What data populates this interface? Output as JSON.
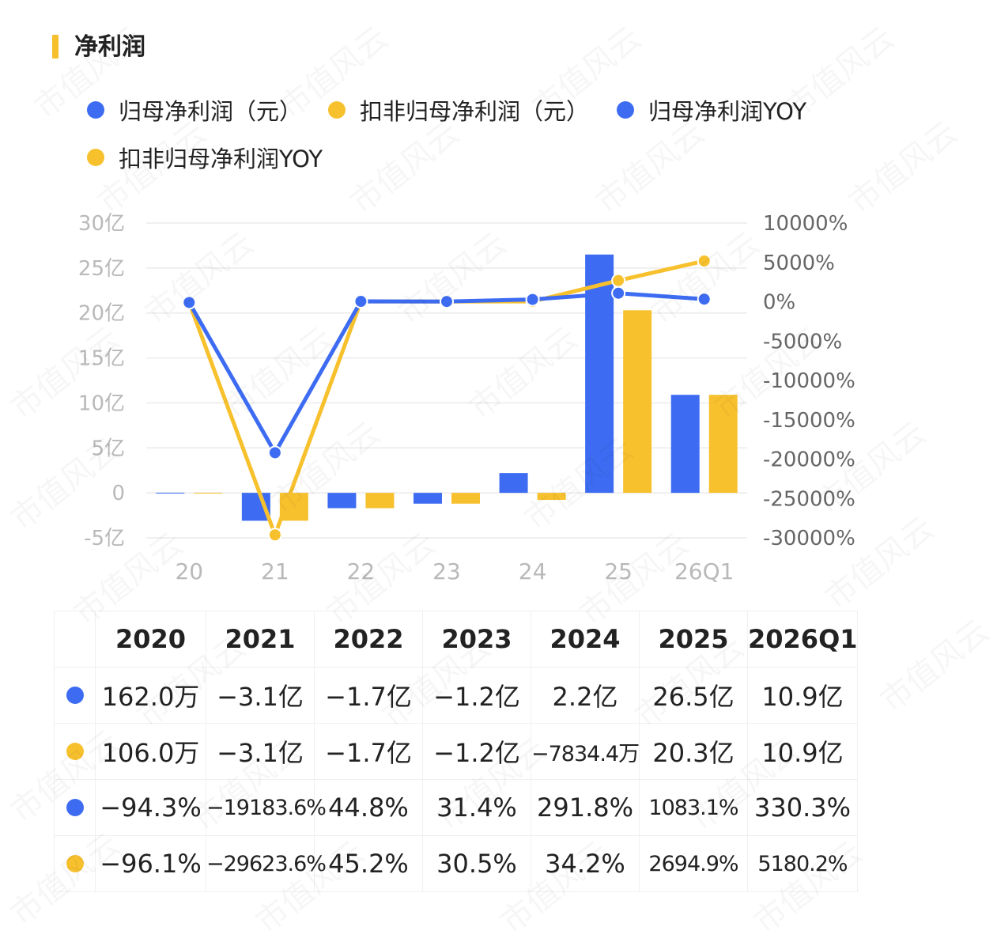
{
  "title": "净利润",
  "colors": {
    "blue": "#3d6cf2",
    "yellow": "#f7c12e",
    "accent_bar": "#f5c02b"
  },
  "legend": [
    {
      "label": "归母净利润（元）",
      "color": "#3d6cf2"
    },
    {
      "label": "扣非归母净利润（元）",
      "color": "#f7c12e"
    },
    {
      "label": "归母净利润YOY",
      "color": "#3d6cf2"
    },
    {
      "label": "扣非归母净利润YOY",
      "color": "#f7c12e"
    }
  ],
  "watermark": "市值风云",
  "chart_data": {
    "type": "bar",
    "categories": [
      "20",
      "21",
      "22",
      "23",
      "24",
      "25",
      "26Q1"
    ],
    "y_left": {
      "ticks": [
        "30亿",
        "25亿",
        "20亿",
        "15亿",
        "10亿",
        "5亿",
        "0",
        "-5亿"
      ],
      "min": -5,
      "max": 30,
      "unit": "亿"
    },
    "y_right": {
      "ticks": [
        "10000%",
        "5000%",
        "0%",
        "-5000%",
        "-10000%",
        "-15000%",
        "-20000%",
        "-25000%",
        "-30000%"
      ],
      "min": -30000,
      "max": 10000
    },
    "series": [
      {
        "name": "归母净利润（元）",
        "kind": "bar",
        "axis": "left",
        "color": "#3d6cf2",
        "values": [
          0.0162,
          -3.1,
          -1.7,
          -1.2,
          2.2,
          26.5,
          10.9
        ]
      },
      {
        "name": "扣非归母净利润（元）",
        "kind": "bar",
        "axis": "left",
        "color": "#f7c12e",
        "values": [
          0.0106,
          -3.1,
          -1.7,
          -1.2,
          -0.78344,
          20.3,
          10.9
        ]
      },
      {
        "name": "归母净利润YOY",
        "kind": "line",
        "axis": "right",
        "color": "#3d6cf2",
        "values": [
          -94.3,
          -19183.6,
          44.8,
          31.4,
          291.8,
          1083.1,
          330.3
        ]
      },
      {
        "name": "扣非归母净利润YOY",
        "kind": "line",
        "axis": "right",
        "color": "#f7c12e",
        "values": [
          -96.1,
          -29623.6,
          45.2,
          30.5,
          34.2,
          2694.9,
          5180.2
        ]
      }
    ]
  },
  "table": {
    "headers": [
      "2020",
      "2021",
      "2022",
      "2023",
      "2024",
      "2025",
      "2026Q1"
    ],
    "rows": [
      {
        "color": "#3d6cf2",
        "cells": [
          "162.0万",
          "−3.1亿",
          "−1.7亿",
          "−1.2亿",
          "2.2亿",
          "26.5亿",
          "10.9亿"
        ]
      },
      {
        "color": "#f7c12e",
        "cells": [
          "106.0万",
          "−3.1亿",
          "−1.7亿",
          "−1.2亿",
          "−7834.4万",
          "20.3亿",
          "10.9亿"
        ]
      },
      {
        "color": "#3d6cf2",
        "cells": [
          "−94.3%",
          "−19183.6%",
          "44.8%",
          "31.4%",
          "291.8%",
          "1083.1%",
          "330.3%"
        ]
      },
      {
        "color": "#f7c12e",
        "cells": [
          "−96.1%",
          "−29623.6%",
          "45.2%",
          "30.5%",
          "34.2%",
          "2694.9%",
          "5180.2%"
        ]
      }
    ]
  }
}
